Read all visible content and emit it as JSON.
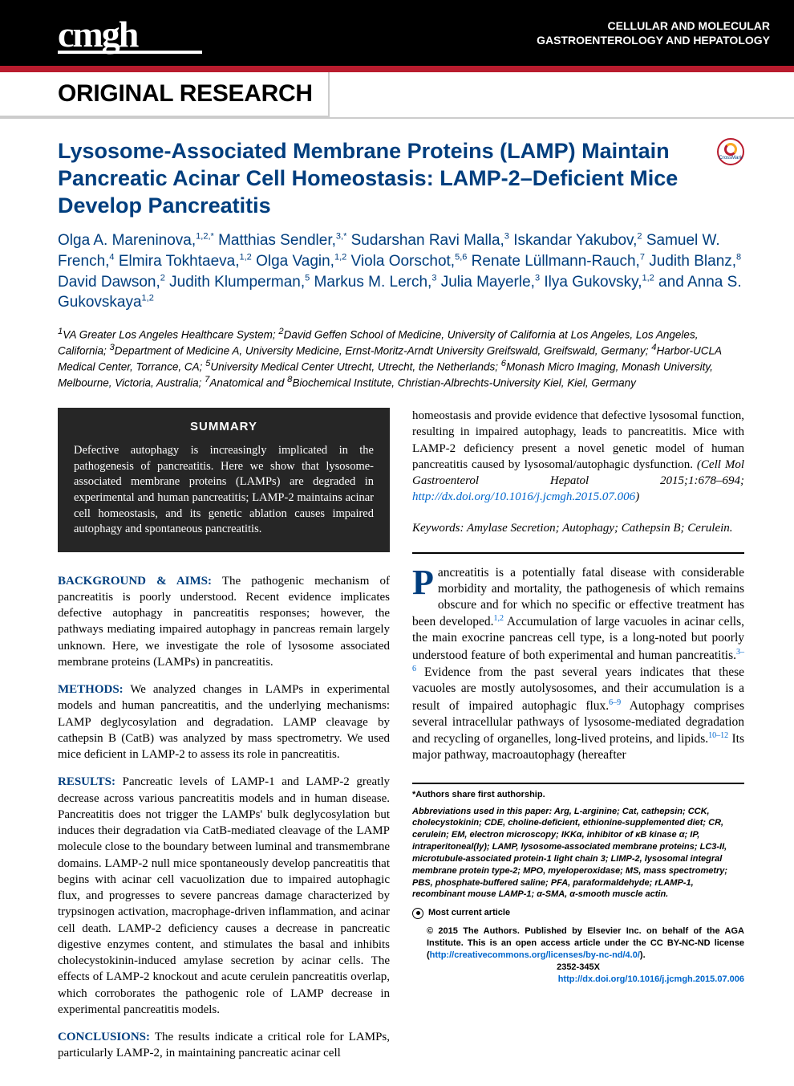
{
  "header": {
    "logo": "cmgh",
    "journal_line1": "CELLULAR AND MOLECULAR",
    "journal_line2": "GASTROENTEROLOGY AND HEPATOLOGY",
    "section_label": "ORIGINAL RESEARCH",
    "crossmark_label": "CrossMark"
  },
  "article": {
    "title": "Lysosome-Associated Membrane Proteins (LAMP) Maintain Pancreatic Acinar Cell Homeostasis: LAMP-2–Deficient Mice Develop Pancreatitis",
    "authors_html": "Olga A. Mareninova,<sup>1,2,*</sup> Matthias Sendler,<sup>3,*</sup> Sudarshan Ravi Malla,<sup>3</sup> Iskandar Yakubov,<sup>2</sup> Samuel W. French,<sup>4</sup> Elmira Tokhtaeva,<sup>1,2</sup> Olga Vagin,<sup>1,2</sup> Viola Oorschot,<sup>5,6</sup> Renate Lüllmann-Rauch,<sup>7</sup> Judith Blanz,<sup>8</sup> David Dawson,<sup>2</sup> Judith Klumperman,<sup>5</sup> Markus M. Lerch,<sup>3</sup> Julia Mayerle,<sup>3</sup> Ilya Gukovsky,<sup>1,2</sup> and Anna S. Gukovskaya<sup>1,2</sup>",
    "affiliations_html": "<sup>1</sup>VA Greater Los Angeles Healthcare System; <sup>2</sup>David Geffen School of Medicine, University of California at Los Angeles, Los Angeles, California; <sup>3</sup>Department of Medicine A, University Medicine, Ernst-Moritz-Arndt University Greifswald, Greifswald, Germany; <sup>4</sup>Harbor-UCLA Medical Center, Torrance, CA; <sup>5</sup>University Medical Center Utrecht, Utrecht, the Netherlands; <sup>6</sup>Monash Micro Imaging, Monash University, Melbourne, Victoria, Australia; <sup>7</sup>Anatomical and <sup>8</sup>Biochemical Institute, Christian-Albrechts-University Kiel, Kiel, Germany"
  },
  "summary": {
    "title": "SUMMARY",
    "text": "Defective autophagy is increasingly implicated in the pathogenesis of pancreatitis. Here we show that lysosome-associated membrane proteins (LAMPs) are degraded in experimental and human pancreatitis; LAMP-2 maintains acinar cell homeostasis, and its genetic ablation causes impaired autophagy and spontaneous pancreatitis."
  },
  "abstract": {
    "background_label": "BACKGROUND & AIMS:",
    "background": "The pathogenic mechanism of pancreatitis is poorly understood. Recent evidence implicates defective autophagy in pancreatitis responses; however, the pathways mediating impaired autophagy in pancreas remain largely unknown. Here, we investigate the role of lysosome associated membrane proteins (LAMPs) in pancreatitis.",
    "methods_label": "METHODS:",
    "methods": "We analyzed changes in LAMPs in experimental models and human pancreatitis, and the underlying mechanisms: LAMP deglycosylation and degradation. LAMP cleavage by cathepsin B (CatB) was analyzed by mass spectrometry. We used mice deficient in LAMP-2 to assess its role in pancreatitis.",
    "results_label": "RESULTS:",
    "results": "Pancreatic levels of LAMP-1 and LAMP-2 greatly decrease across various pancreatitis models and in human disease. Pancreatitis does not trigger the LAMPs' bulk deglycosylation but induces their degradation via CatB-mediated cleavage of the LAMP molecule close to the boundary between luminal and transmembrane domains. LAMP-2 null mice spontaneously develop pancreatitis that begins with acinar cell vacuolization due to impaired autophagic flux, and progresses to severe pancreas damage characterized by trypsinogen activation, macrophage-driven inflammation, and acinar cell death. LAMP-2 deficiency causes a decrease in pancreatic digestive enzymes content, and stimulates the basal and inhibits cholecystokinin-induced amylase secretion by acinar cells. The effects of LAMP-2 knockout and acute cerulein pancreatitis overlap, which corroborates the pathogenic role of LAMP decrease in experimental pancreatitis models.",
    "conclusions_label": "CONCLUSIONS:",
    "conclusions": "The results indicate a critical role for LAMPs, particularly LAMP-2, in maintaining pancreatic acinar cell",
    "conclusions_cont": "homeostasis and provide evidence that defective lysosomal function, resulting in impaired autophagy, leads to pancreatitis. Mice with LAMP-2 deficiency present a novel genetic model of human pancreatitis caused by lysosomal/autophagic dysfunction.",
    "citation_text": "(Cell Mol Gastroenterol Hepatol 2015;1:678–694;",
    "citation_url": "http://dx.doi.org/10.1016/j.jcmgh.2015.07.006",
    "keywords_label": "Keywords:",
    "keywords": "Amylase Secretion; Autophagy; Cathepsin B; Cerulein."
  },
  "intro": {
    "dropcap": "P",
    "text_html": "ancreatitis is a potentially fatal disease with considerable morbidity and mortality, the pathogenesis of which remains obscure and for which no specific or effective treatment has been developed.<span class=\"ref\">1,2</span> Accumulation of large vacuoles in acinar cells, the main exocrine pancreas cell type, is a long-noted but poorly understood feature of both experimental and human pancreatitis.<span class=\"ref\">3–6</span> Evidence from the past several years indicates that these vacuoles are mostly autolysosomes, and their accumulation is a result of impaired autophagic flux.<span class=\"ref\">6–9</span> Autophagy comprises several intracellular pathways of lysosome-mediated degradation and recycling of organelles, long-lived proteins, and lipids.<span class=\"ref\">10–12</span> Its major pathway, macroautophagy (hereafter"
  },
  "footer": {
    "shared_authorship": "*Authors share first authorship.",
    "abbrev_label": "Abbreviations used in this paper:",
    "abbrevs": "Arg, L-arginine; Cat, cathepsin; CCK, cholecystokinin; CDE, choline-deficient, ethionine-supplemented diet; CR, cerulein; EM, electron microscopy; IKKα, inhibitor of κB kinase α; IP, intraperitoneal(ly); LAMP, lysosome-associated membrane proteins; LC3-II, microtubule-associated protein-1 light chain 3; LIMP-2, lysosomal integral membrane protein type-2; MPO, myeloperoxidase; MS, mass spectrometry; PBS, phosphate-buffered saline; PFA, paraformaldehyde; rLAMP-1, recombinant mouse LAMP-1; α-SMA, α-smooth muscle actin.",
    "most_current": "Most current article",
    "copyright_text": "© 2015 The Authors. Published by Elsevier Inc. on behalf of the AGA Institute. This is an open access article under the CC BY-NC-ND license (",
    "license_url": "http://creativecommons.org/licenses/by-nc-nd/4.0/",
    "issn": "2352-345X",
    "doi_url": "http://dx.doi.org/10.1016/j.jcmgh.2015.07.006"
  },
  "colors": {
    "brand_blue": "#003e7e",
    "brand_red": "#b91c2e",
    "link_blue": "#0066cc",
    "summary_bg": "#262626"
  }
}
